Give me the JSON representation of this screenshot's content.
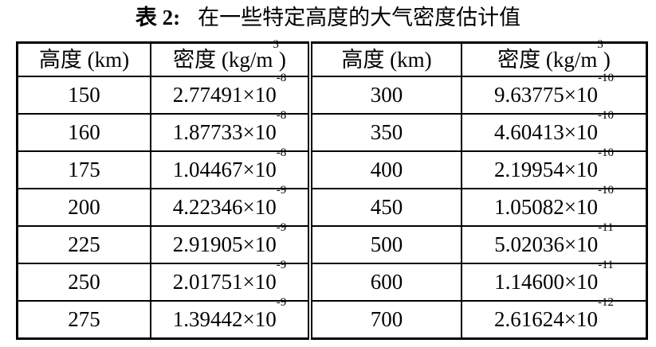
{
  "caption": {
    "label": "表 2:",
    "text": "在一些特定高度的大气密度估计值"
  },
  "headers": [
    {
      "base": "高度 (km)",
      "sup": "",
      "close": ""
    },
    {
      "base": "密度 (kg/m",
      "sup": "3",
      "close": ")"
    },
    {
      "base": "高度 (km)",
      "sup": "",
      "close": ""
    },
    {
      "base": "密度 (kg/m",
      "sup": "3",
      "close": ")"
    }
  ],
  "times_ten": "×10",
  "rows": [
    {
      "h1": "150",
      "m1": "2.77491",
      "e1": "-8",
      "h2": "300",
      "m2": "9.63775",
      "e2": "-10"
    },
    {
      "h1": "160",
      "m1": "1.87733",
      "e1": "-8",
      "h2": "350",
      "m2": "4.60413",
      "e2": "-10"
    },
    {
      "h1": "175",
      "m1": "1.04467",
      "e1": "-8",
      "h2": "400",
      "m2": "2.19954",
      "e2": "-10"
    },
    {
      "h1": "200",
      "m1": "4.22346",
      "e1": "-9",
      "h2": "450",
      "m2": "1.05082",
      "e2": "-10"
    },
    {
      "h1": "225",
      "m1": "2.91905",
      "e1": "-9",
      "h2": "500",
      "m2": "5.02036",
      "e2": "-11"
    },
    {
      "h1": "250",
      "m1": "2.01751",
      "e1": "-9",
      "h2": "600",
      "m2": "1.14600",
      "e2": "-11"
    },
    {
      "h1": "275",
      "m1": "1.39442",
      "e1": "-9",
      "h2": "700",
      "m2": "2.61624",
      "e2": "-12"
    }
  ]
}
